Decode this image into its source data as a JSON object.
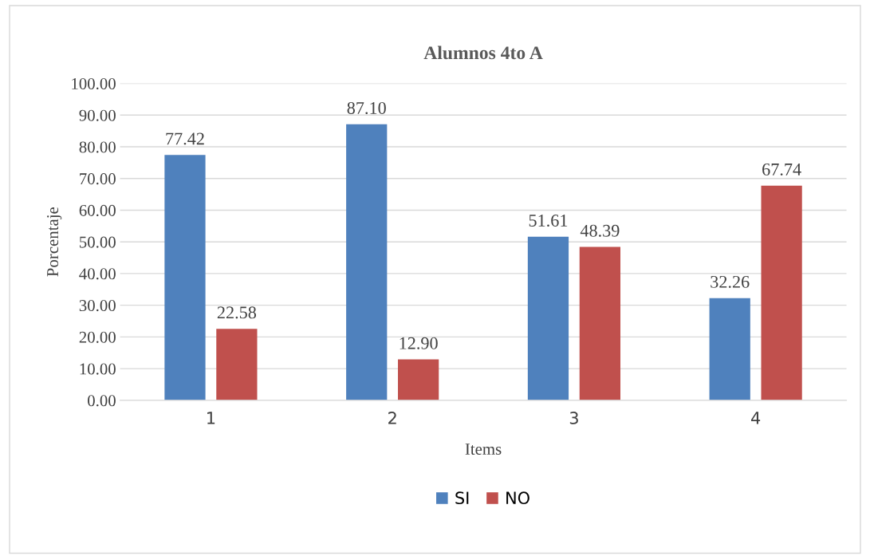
{
  "chart_data": {
    "type": "bar",
    "title": "Alumnos 4to A",
    "xlabel": "Items",
    "ylabel": "Porcentaje",
    "categories": [
      "1",
      "2",
      "3",
      "4"
    ],
    "series": [
      {
        "name": "SI",
        "color": "#4f81bd",
        "values": [
          77.42,
          87.1,
          51.61,
          32.26
        ],
        "value_labels": [
          "77.42",
          "87.10",
          "51.61",
          "32.26"
        ]
      },
      {
        "name": "NO",
        "color": "#c0504d",
        "values": [
          22.58,
          12.9,
          48.39,
          67.74
        ],
        "value_labels": [
          "22.58",
          "12.90",
          "48.39",
          "67.74"
        ]
      }
    ],
    "ylim": [
      0,
      100
    ],
    "yticks": [
      {
        "value": 0,
        "label": "0.00"
      },
      {
        "value": 10,
        "label": "10.00"
      },
      {
        "value": 20,
        "label": "20.00"
      },
      {
        "value": 30,
        "label": "30.00"
      },
      {
        "value": 40,
        "label": "40.00"
      },
      {
        "value": 50,
        "label": "50.00"
      },
      {
        "value": 60,
        "label": "60.00"
      },
      {
        "value": 70,
        "label": "70.00"
      },
      {
        "value": 80,
        "label": "80.00"
      },
      {
        "value": 90,
        "label": "90.00"
      },
      {
        "value": 100,
        "label": "100.00"
      }
    ],
    "grid": "y",
    "legend": "bottom"
  }
}
